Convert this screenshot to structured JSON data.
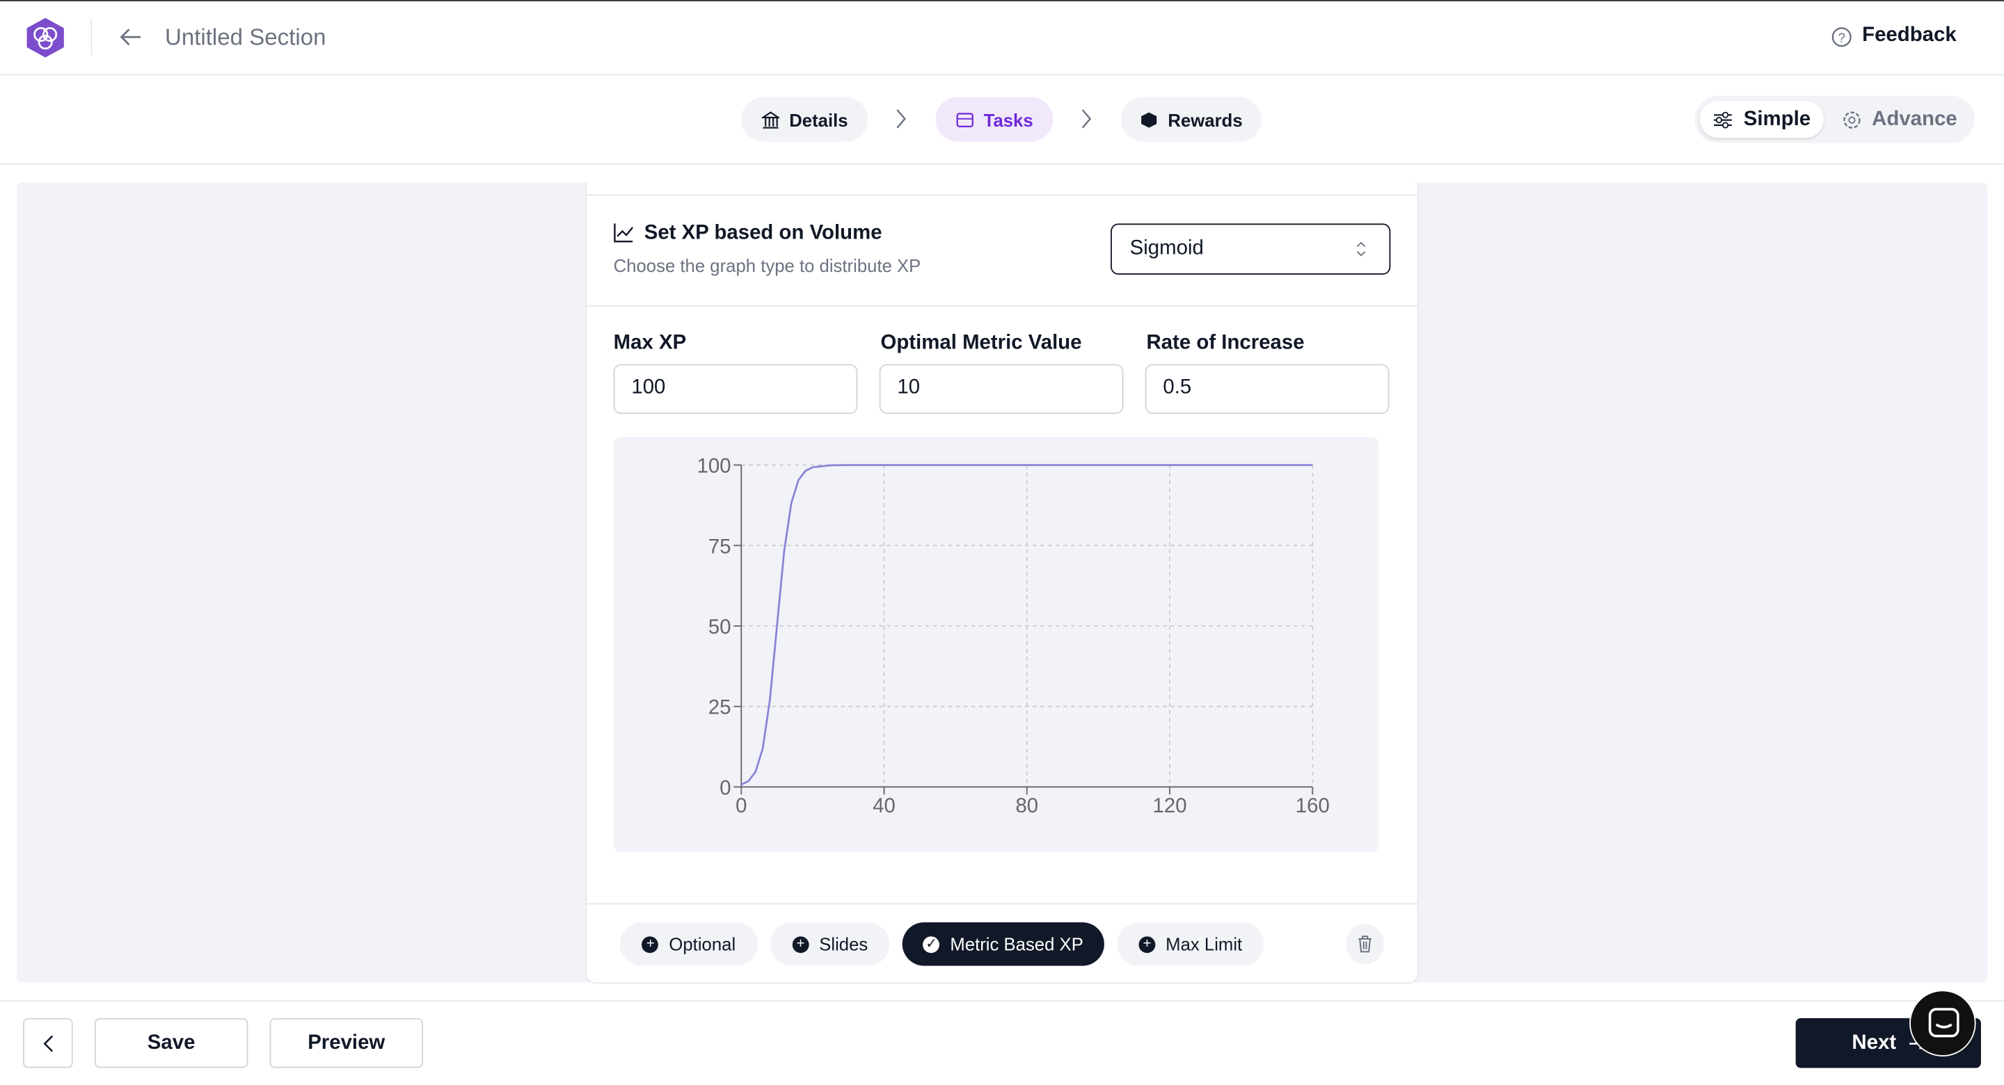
{
  "header": {
    "title": "Untitled Section",
    "feedback": "Feedback"
  },
  "steps": [
    "Details",
    "Tasks",
    "Rewards"
  ],
  "modes": [
    "Simple",
    "Advance"
  ],
  "section": {
    "title": "Set XP based on Volume",
    "subtitle": "Choose the graph type to distribute XP",
    "graph_type": "Sigmoid"
  },
  "fields": [
    {
      "label": "Max XP",
      "value": "100"
    },
    {
      "label": "Optimal Metric Value",
      "value": "10"
    },
    {
      "label": "Rate of Increase",
      "value": "0.5"
    }
  ],
  "chart": {
    "type": "line",
    "x": [
      0,
      2,
      4,
      6,
      8,
      10,
      12,
      14,
      16,
      18,
      20,
      25,
      30,
      40,
      80,
      120,
      160
    ],
    "values": [
      0.7,
      1.8,
      4.7,
      11.9,
      26.9,
      50,
      73.1,
      88.1,
      95.3,
      98.2,
      99.3,
      99.9,
      100,
      100,
      100,
      100,
      100
    ],
    "color": "#8884d8",
    "xlim": [
      0,
      160
    ],
    "ylim": [
      0,
      100
    ],
    "xticks": [
      0,
      40,
      80,
      120,
      160
    ],
    "yticks": [
      0,
      25,
      50,
      75,
      100
    ],
    "grid": true
  },
  "tags": [
    "Optional",
    "Slides",
    "Metric Based XP",
    "Max Limit"
  ],
  "footer": {
    "save": "Save",
    "preview": "Preview",
    "next": "Next"
  }
}
